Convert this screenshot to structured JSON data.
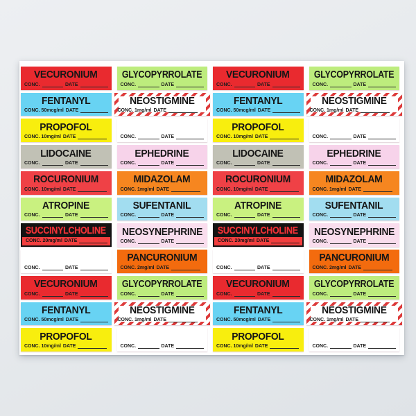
{
  "scene": {
    "wall_color": "#e7eaed",
    "poster_color": "#fefefe"
  },
  "conc_text": {
    "conc": "CONC.",
    "date": "DATE"
  },
  "labels": {
    "vecuronium": {
      "title": "VECURONIUM",
      "bg": "#e92a2f",
      "title_color": "#161616",
      "conc_value": "",
      "style": "plain"
    },
    "glycopyrrolate": {
      "title": "GLYCOPYRROLATE",
      "bg": "#bdec7d",
      "title_color": "#161616",
      "conc_value": "",
      "style": "plain"
    },
    "fentanyl": {
      "title": "FENTANYL",
      "bg": "#68d3f3",
      "title_color": "#161616",
      "conc_value": "50mcg/ml",
      "style": "plain"
    },
    "neostigmine": {
      "title": "NEOSTIGMINE",
      "bg": "#ffffff",
      "title_color": "#161616",
      "conc_value": "1mg/ml",
      "style": "striped",
      "stripe_color": "#dd3a3a"
    },
    "propofol": {
      "title": "PROPOFOL",
      "bg": "#f8ee0e",
      "title_color": "#161616",
      "conc_value": "10mg/ml",
      "style": "plain"
    },
    "blank": {
      "title": "",
      "bg": "#ffffff",
      "title_color": "#161616",
      "conc_value": "",
      "style": "plain"
    },
    "lidocaine": {
      "title": "LIDOCAINE",
      "bg": "#c1c1b5",
      "title_color": "#161616",
      "conc_value": "",
      "style": "plain"
    },
    "ephedrine": {
      "title": "EPHEDRINE",
      "bg": "#f7d3ea",
      "title_color": "#161616",
      "conc_value": "",
      "style": "plain"
    },
    "rocuronium": {
      "title": "ROCURONIUM",
      "bg": "#ef4146",
      "title_color": "#161616",
      "conc_value": "10mg/ml",
      "style": "plain"
    },
    "midazolam": {
      "title": "MIDAZOLAM",
      "bg": "#f68620",
      "title_color": "#161616",
      "conc_value": "1mg/ml",
      "style": "plain"
    },
    "atropine": {
      "title": "ATROPINE",
      "bg": "#c9f180",
      "title_color": "#161616",
      "conc_value": "",
      "style": "plain"
    },
    "sufentanil": {
      "title": "SUFENTANIL",
      "bg": "#a2ddf0",
      "title_color": "#161616",
      "conc_value": "",
      "style": "plain"
    },
    "succinylcholine": {
      "title": "SUCCINYLCHOLINE",
      "bg": "#131313",
      "title_color": "#ee3237",
      "conc_value": "20mg/ml",
      "style": "succ",
      "strip_color": "#f23e3e"
    },
    "neosynephrine": {
      "title": "NEOSYNEPHRINE",
      "bg": "#f9dded",
      "title_color": "#161616",
      "conc_value": "",
      "style": "plain"
    },
    "pancuronium": {
      "title": "PANCURONIUM",
      "bg": "#f36b0e",
      "title_color": "#161616",
      "conc_value": "2mg/ml",
      "style": "plain"
    }
  },
  "grid_rows": [
    [
      "vecuronium",
      "glycopyrrolate",
      "vecuronium",
      "glycopyrrolate"
    ],
    [
      "fentanyl",
      "neostigmine",
      "fentanyl",
      "neostigmine"
    ],
    [
      "propofol",
      "blank",
      "propofol",
      "blank"
    ],
    [
      "lidocaine",
      "ephedrine",
      "lidocaine",
      "ephedrine"
    ],
    [
      "rocuronium",
      "midazolam",
      "rocuronium",
      "midazolam"
    ],
    [
      "atropine",
      "sufentanil",
      "atropine",
      "sufentanil"
    ],
    [
      "succinylcholine",
      "neosynephrine",
      "succinylcholine",
      "neosynephrine"
    ],
    [
      "blank",
      "pancuronium",
      "blank",
      "pancuronium"
    ],
    [
      "vecuronium",
      "glycopyrrolate",
      "vecuronium",
      "glycopyrrolate"
    ],
    [
      "fentanyl",
      "neostigmine",
      "fentanyl",
      "neostigmine"
    ],
    [
      "propofol",
      "blank",
      "propofol",
      "blank"
    ]
  ]
}
